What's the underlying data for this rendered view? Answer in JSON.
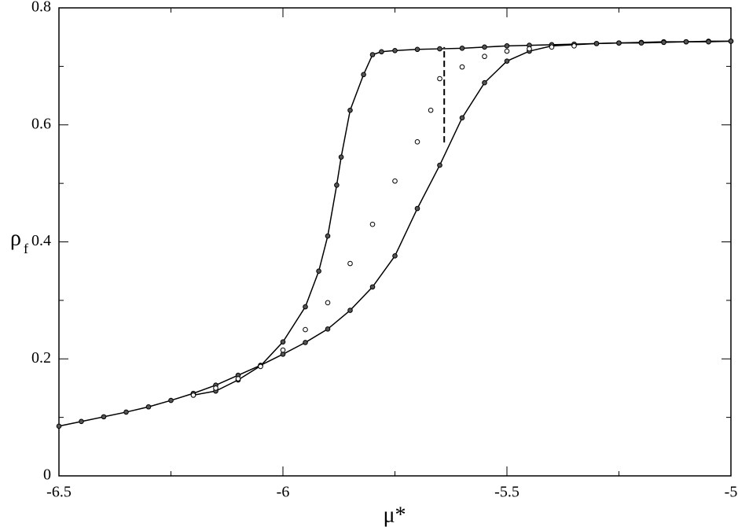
{
  "chart_data": {
    "type": "line",
    "xlabel": "μ*",
    "ylabel": {
      "main": "ρ",
      "sub": "f"
    },
    "xlim": [
      -6.5,
      -5
    ],
    "ylim": [
      0,
      0.8
    ],
    "xticks": [
      -6.5,
      -6,
      -5.5,
      -5
    ],
    "yticks": [
      0,
      0.2,
      0.4,
      0.6,
      0.8
    ],
    "xminorticks": [
      -6.25,
      -5.75,
      -5.25
    ],
    "yminorticks": [
      0.1,
      0.3,
      0.5,
      0.7
    ],
    "series": [
      {
        "color": "#000000",
        "line": true,
        "marker": "filled",
        "x": [
          -6.5,
          -6.45,
          -6.4,
          -6.35,
          -6.3,
          -6.25,
          -6.2,
          -6.15,
          -6.1,
          -6.05,
          -6.0,
          -5.95,
          -5.9,
          -5.85,
          -5.8,
          -5.75,
          -5.7,
          -5.65,
          -5.6,
          -5.55,
          -5.5,
          -5.45,
          -5.4,
          -5.35,
          -5.3,
          -5.25,
          -5.2,
          -5.15,
          -5.1,
          -5.05,
          -5.0
        ],
        "values": [
          0.085,
          0.093,
          0.101,
          0.109,
          0.118,
          0.129,
          0.141,
          0.155,
          0.172,
          0.189,
          0.208,
          0.228,
          0.251,
          0.283,
          0.323,
          0.376,
          0.457,
          0.531,
          0.612,
          0.672,
          0.709,
          0.726,
          0.735,
          0.737,
          0.739,
          0.74,
          0.741,
          0.742,
          0.742,
          0.743,
          0.743
        ]
      },
      {
        "color": "#000000",
        "line": true,
        "marker": "filled",
        "x": [
          -6.2,
          -6.15,
          -6.1,
          -6.05,
          -6.0,
          -5.95,
          -5.92,
          -5.9,
          -5.88,
          -5.87,
          -5.85,
          -5.82,
          -5.8,
          -5.78,
          -5.75,
          -5.7,
          -5.65,
          -5.6,
          -5.55,
          -5.5,
          -5.45,
          -5.4,
          -5.35,
          -5.3,
          -5.25,
          -5.2,
          -5.15,
          -5.1,
          -5.05,
          -5.0
        ],
        "values": [
          0.138,
          0.145,
          0.164,
          0.188,
          0.229,
          0.289,
          0.35,
          0.41,
          0.497,
          0.545,
          0.625,
          0.686,
          0.72,
          0.725,
          0.727,
          0.729,
          0.73,
          0.731,
          0.733,
          0.735,
          0.736,
          0.737,
          0.738,
          0.739,
          0.74,
          0.74,
          0.741,
          0.742,
          0.742,
          0.743
        ]
      },
      {
        "color": "#000000",
        "line": false,
        "marker": "open",
        "x": [
          -6.2,
          -6.15,
          -6.1,
          -6.05,
          -6.0,
          -5.95,
          -5.9,
          -5.85,
          -5.8,
          -5.75,
          -5.7,
          -5.67,
          -5.65,
          -5.6,
          -5.55,
          -5.5,
          -5.45,
          -5.4,
          -5.35
        ],
        "values": [
          0.138,
          0.15,
          0.166,
          0.187,
          0.215,
          0.25,
          0.296,
          0.363,
          0.43,
          0.504,
          0.571,
          0.625,
          0.679,
          0.699,
          0.717,
          0.726,
          0.73,
          0.733,
          0.735
        ]
      }
    ],
    "transition": {
      "x": -5.64,
      "y": [
        0.57,
        0.733
      ]
    }
  }
}
